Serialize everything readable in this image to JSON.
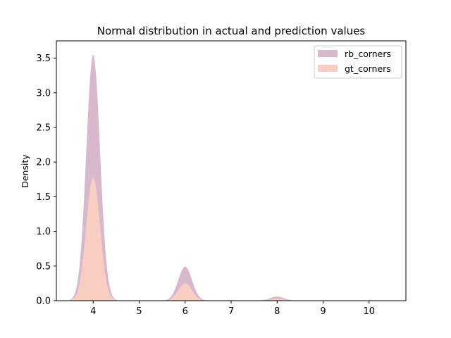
{
  "chart_data": {
    "type": "area",
    "title": "Normal distribution in actual and prediction values",
    "xlabel": "",
    "ylabel": "Density",
    "xlim": [
      3.2,
      10.8
    ],
    "ylim": [
      0,
      3.75
    ],
    "xticks": [
      4,
      5,
      6,
      7,
      8,
      9,
      10
    ],
    "yticks": [
      0.0,
      0.5,
      1.0,
      1.5,
      2.0,
      2.5,
      3.0,
      3.5
    ],
    "ytick_labels": [
      "0.0",
      "0.5",
      "1.0",
      "1.5",
      "2.0",
      "2.5",
      "3.0",
      "3.5"
    ],
    "grid": false,
    "legend_position": "top-right",
    "x_range": [
      3.5,
      10.5
    ],
    "series": [
      {
        "name": "rb_corners",
        "color": "#d8b8cc",
        "peaks": [
          {
            "x": 4,
            "y": 3.55
          },
          {
            "x": 6,
            "y": 0.49
          },
          {
            "x": 8,
            "y": 0.06
          }
        ]
      },
      {
        "name": "gt_corners",
        "color": "#f8cdc2",
        "peaks": [
          {
            "x": 4,
            "y": 1.78
          },
          {
            "x": 6,
            "y": 0.25
          },
          {
            "x": 8,
            "y": 0.03
          }
        ]
      }
    ]
  }
}
